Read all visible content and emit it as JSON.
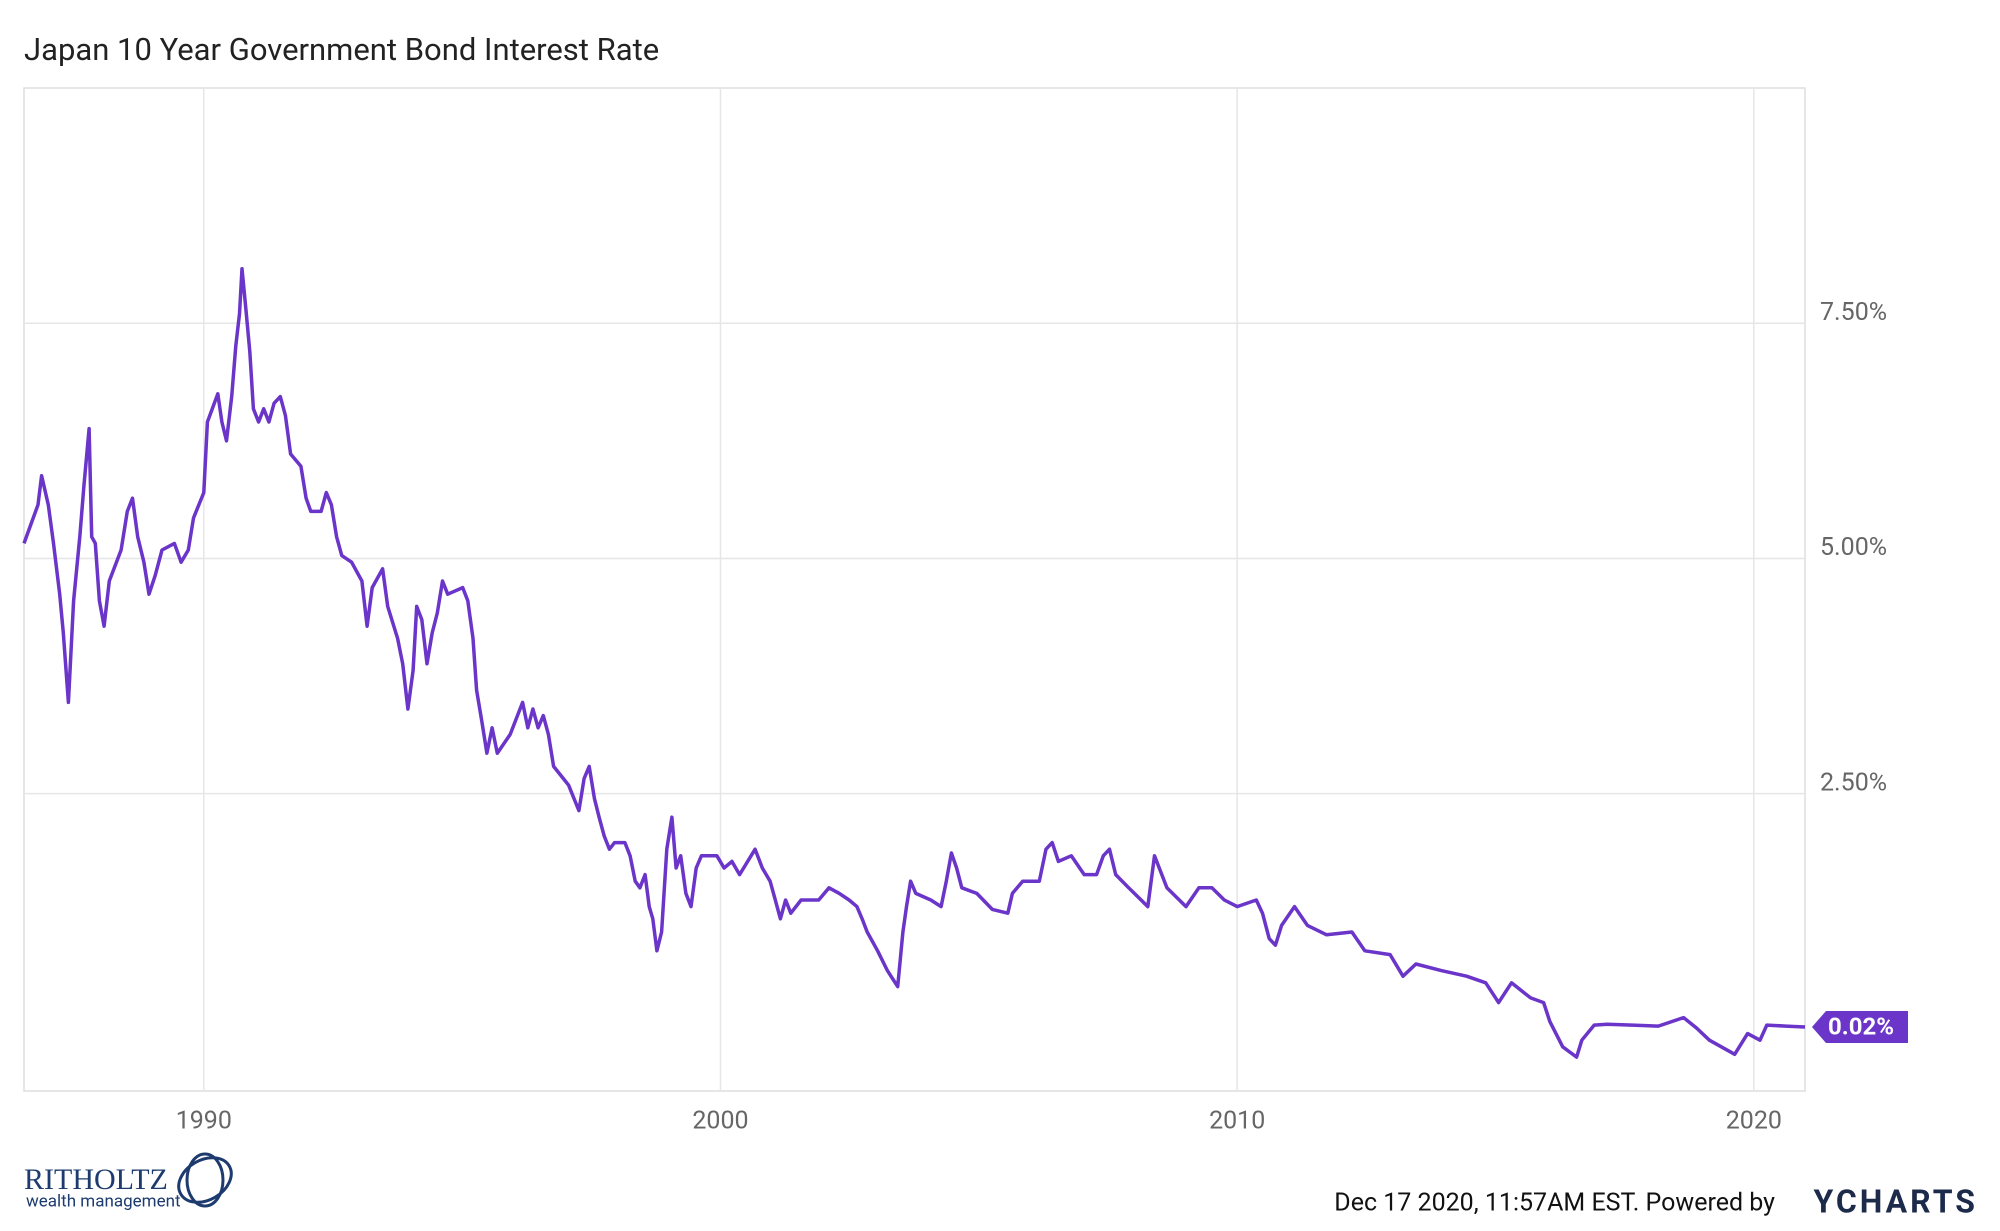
{
  "chart_data": {
    "type": "line",
    "title": "Japan 10 Year Government Bond Interest Rate",
    "xlim": [
      1986.52,
      2020.99
    ],
    "xticks": [
      1990,
      2000,
      2010,
      2020
    ],
    "ylim": [
      -0.66,
      10
    ],
    "yticks": [
      {
        "value": 2.5,
        "label": "2.50%"
      },
      {
        "value": 5,
        "label": "5.00%"
      },
      {
        "value": 7.5,
        "label": "7.50%"
      }
    ],
    "grid": true,
    "series": [
      {
        "color": "#6a35c8",
        "end_label": "0.02%",
        "x": [
          1986.52,
          1986.79,
          1986.86,
          1986.99,
          1987.09,
          1987.21,
          1987.28,
          1987.38,
          1987.48,
          1987.6,
          1987.68,
          1987.78,
          1987.83,
          1987.9,
          1987.98,
          1988.07,
          1988.17,
          1988.4,
          1988.52,
          1988.62,
          1988.72,
          1988.84,
          1988.94,
          1989.06,
          1989.19,
          1989.43,
          1989.56,
          1989.7,
          1989.8,
          1990.0,
          1990.07,
          1990.27,
          1990.35,
          1990.44,
          1990.54,
          1990.62,
          1990.69,
          1990.74,
          1990.81,
          1990.89,
          1990.96,
          1991.06,
          1991.16,
          1991.26,
          1991.36,
          1991.48,
          1991.58,
          1991.68,
          1991.88,
          1991.98,
          1992.07,
          1992.27,
          1992.37,
          1992.47,
          1992.57,
          1992.67,
          1992.86,
          1993.06,
          1993.16,
          1993.26,
          1993.46,
          1993.56,
          1993.75,
          1993.85,
          1993.95,
          1994.05,
          1994.12,
          1994.22,
          1994.32,
          1994.42,
          1994.52,
          1994.62,
          1994.72,
          1995.01,
          1995.11,
          1995.21,
          1995.28,
          1995.38,
          1995.48,
          1995.58,
          1995.68,
          1995.93,
          1996.17,
          1996.27,
          1996.37,
          1996.47,
          1996.57,
          1996.67,
          1996.77,
          1996.96,
          1997.06,
          1997.26,
          1997.36,
          1997.46,
          1997.56,
          1997.65,
          1997.75,
          1997.85,
          1997.95,
          1998.15,
          1998.25,
          1998.35,
          1998.44,
          1998.54,
          1998.62,
          1998.69,
          1998.77,
          1998.86,
          1998.96,
          1999.06,
          1999.14,
          1999.23,
          1999.33,
          1999.43,
          1999.53,
          1999.63,
          1999.93,
          2000.07,
          2000.22,
          2000.37,
          2000.67,
          2000.81,
          2000.96,
          2001.06,
          2001.16,
          2001.26,
          2001.36,
          2001.56,
          2001.9,
          2002.1,
          2002.3,
          2002.49,
          2002.64,
          2002.74,
          2002.84,
          2003.04,
          2003.23,
          2003.43,
          2003.53,
          2003.6,
          2003.68,
          2003.78,
          2004.07,
          2004.27,
          2004.37,
          2004.47,
          2004.57,
          2004.67,
          2004.96,
          2005.26,
          2005.56,
          2005.65,
          2005.85,
          2006.17,
          2006.3,
          2006.42,
          2006.54,
          2006.79,
          2007.04,
          2007.28,
          2007.41,
          2007.53,
          2007.65,
          2007.9,
          2008.27,
          2008.4,
          2008.64,
          2009.01,
          2009.26,
          2009.51,
          2009.75,
          2010.0,
          2010.37,
          2010.49,
          2010.62,
          2010.74,
          2010.86,
          2011.11,
          2011.36,
          2011.73,
          2012.22,
          2012.47,
          2012.96,
          2013.21,
          2013.46,
          2013.95,
          2014.44,
          2014.81,
          2015.06,
          2015.31,
          2015.68,
          2015.93,
          2016.05,
          2016.3,
          2016.57,
          2016.67,
          2016.91,
          2017.16,
          2017.65,
          2018.15,
          2018.64,
          2018.89,
          2019.14,
          2019.63,
          2019.88,
          2020.12,
          2020.25,
          2020.62,
          2020.99
        ],
        "values": [
          5.16,
          5.57,
          5.88,
          5.57,
          5.16,
          4.62,
          4.21,
          3.47,
          4.55,
          5.23,
          5.77,
          6.38,
          5.23,
          5.16,
          4.55,
          4.28,
          4.76,
          5.09,
          5.5,
          5.64,
          5.23,
          4.96,
          4.62,
          4.82,
          5.09,
          5.16,
          4.96,
          5.09,
          5.43,
          5.7,
          6.45,
          6.75,
          6.45,
          6.25,
          6.72,
          7.26,
          7.6,
          8.08,
          7.67,
          7.2,
          6.59,
          6.45,
          6.59,
          6.45,
          6.65,
          6.72,
          6.52,
          6.11,
          5.98,
          5.64,
          5.5,
          5.5,
          5.7,
          5.57,
          5.23,
          5.03,
          4.96,
          4.76,
          4.28,
          4.69,
          4.89,
          4.49,
          4.15,
          3.88,
          3.4,
          3.81,
          4.49,
          4.35,
          3.88,
          4.21,
          4.42,
          4.76,
          4.62,
          4.69,
          4.55,
          4.15,
          3.6,
          3.27,
          2.93,
          3.2,
          2.93,
          3.13,
          3.47,
          3.2,
          3.4,
          3.2,
          3.33,
          3.13,
          2.79,
          2.66,
          2.59,
          2.32,
          2.66,
          2.79,
          2.45,
          2.25,
          2.05,
          1.91,
          1.98,
          1.98,
          1.84,
          1.57,
          1.5,
          1.64,
          1.3,
          1.17,
          0.83,
          1.03,
          1.91,
          2.25,
          1.71,
          1.84,
          1.44,
          1.3,
          1.71,
          1.84,
          1.84,
          1.71,
          1.78,
          1.64,
          1.91,
          1.71,
          1.57,
          1.37,
          1.17,
          1.37,
          1.23,
          1.37,
          1.37,
          1.5,
          1.44,
          1.37,
          1.3,
          1.17,
          1.03,
          0.83,
          0.62,
          0.45,
          1.03,
          1.3,
          1.57,
          1.44,
          1.37,
          1.3,
          1.57,
          1.87,
          1.71,
          1.5,
          1.44,
          1.27,
          1.23,
          1.44,
          1.57,
          1.57,
          1.91,
          1.98,
          1.78,
          1.84,
          1.64,
          1.64,
          1.84,
          1.91,
          1.64,
          1.5,
          1.3,
          1.84,
          1.5,
          1.3,
          1.5,
          1.5,
          1.37,
          1.3,
          1.37,
          1.23,
          0.96,
          0.89,
          1.1,
          1.3,
          1.1,
          1.0,
          1.03,
          0.83,
          0.79,
          0.56,
          0.69,
          0.62,
          0.56,
          0.49,
          0.28,
          0.49,
          0.33,
          0.28,
          0.08,
          -0.19,
          -0.3,
          -0.12,
          0.04,
          0.05,
          0.04,
          0.03,
          0.12,
          0.01,
          -0.12,
          -0.27,
          -0.05,
          -0.12,
          0.04,
          0.03,
          0.02
        ]
      }
    ]
  },
  "footer": {
    "timestamp": "Dec 17 2020, 11:57AM EST. Powered by",
    "brand": "YCHARTS"
  },
  "logo": {
    "name": "RITHOLTZ",
    "tagline": "wealth management"
  }
}
